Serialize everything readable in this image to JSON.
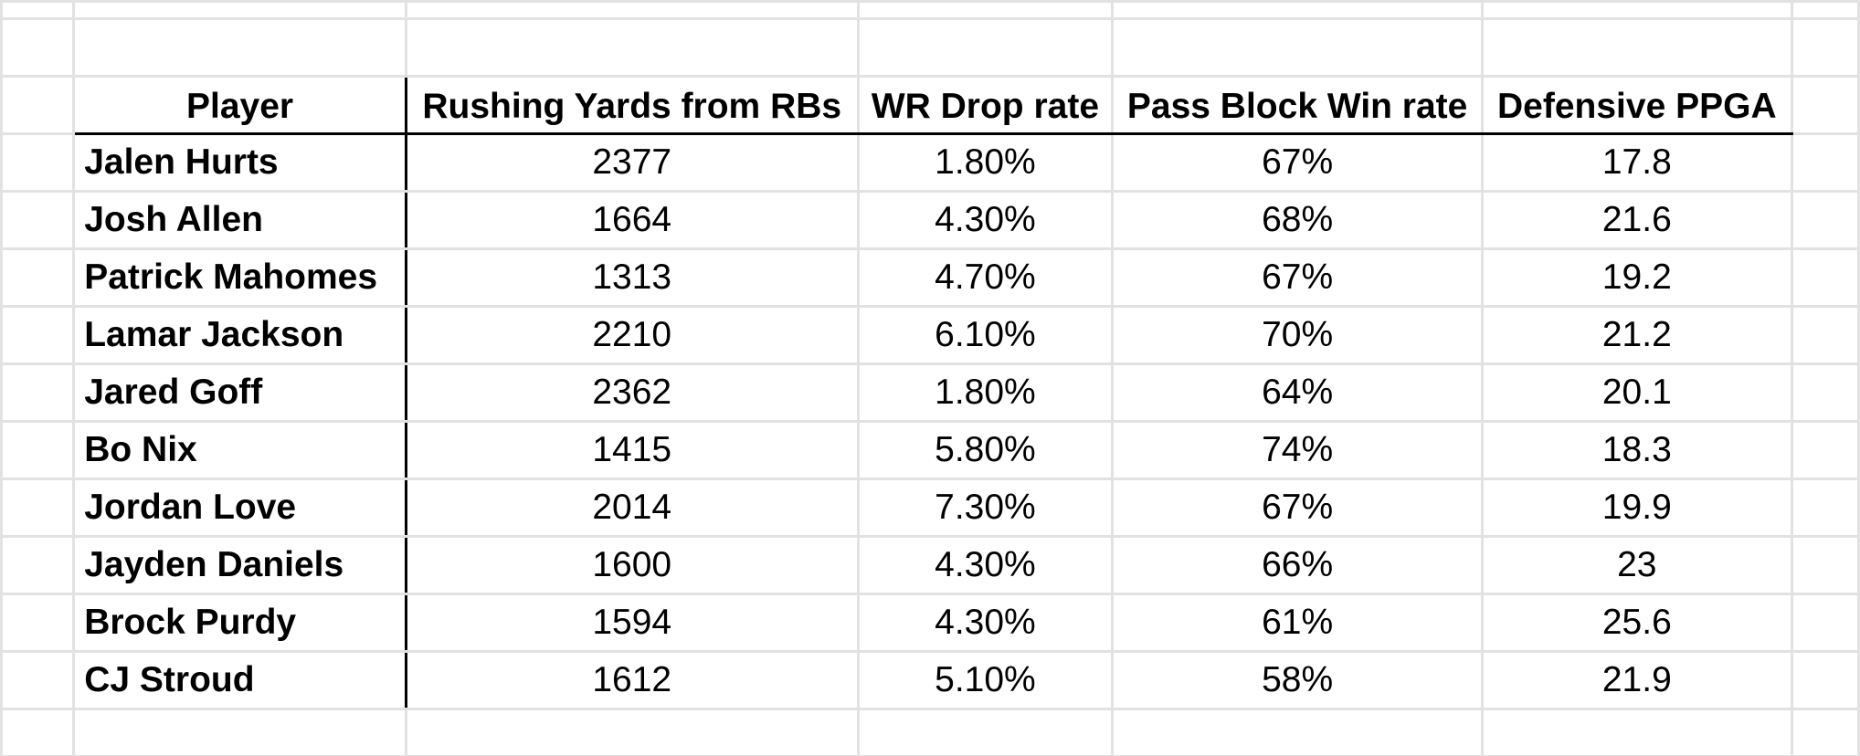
{
  "table": {
    "headers": {
      "player": "Player",
      "rushing": "Rushing Yards from RBs",
      "drop_rate": "WR Drop rate",
      "pass_block": "Pass Block Win rate",
      "ppga": "Defensive PPGA"
    },
    "rows": [
      {
        "player": "Jalen Hurts",
        "rushing": "2377",
        "drop_rate": "1.80%",
        "pass_block": "67%",
        "ppga": "17.8"
      },
      {
        "player": "Josh Allen",
        "rushing": "1664",
        "drop_rate": "4.30%",
        "pass_block": "68%",
        "ppga": "21.6"
      },
      {
        "player": "Patrick Mahomes",
        "rushing": "1313",
        "drop_rate": "4.70%",
        "pass_block": "67%",
        "ppga": "19.2"
      },
      {
        "player": "Lamar Jackson",
        "rushing": "2210",
        "drop_rate": "6.10%",
        "pass_block": "70%",
        "ppga": "21.2"
      },
      {
        "player": "Jared Goff",
        "rushing": "2362",
        "drop_rate": "1.80%",
        "pass_block": "64%",
        "ppga": "20.1"
      },
      {
        "player": "Bo Nix",
        "rushing": "1415",
        "drop_rate": "5.80%",
        "pass_block": "74%",
        "ppga": "18.3"
      },
      {
        "player": "Jordan Love",
        "rushing": "2014",
        "drop_rate": "7.30%",
        "pass_block": "67%",
        "ppga": "19.9"
      },
      {
        "player": "Jayden Daniels",
        "rushing": "1600",
        "drop_rate": "4.30%",
        "pass_block": "66%",
        "ppga": "23"
      },
      {
        "player": "Brock Purdy",
        "rushing": "1594",
        "drop_rate": "4.30%",
        "pass_block": "61%",
        "ppga": "25.6"
      },
      {
        "player": "CJ Stroud",
        "rushing": "1612",
        "drop_rate": "5.10%",
        "pass_block": "58%",
        "ppga": "21.9"
      }
    ]
  },
  "colors": {
    "gridline": "#e2e2e2",
    "border": "#000000",
    "background": "#ffffff"
  }
}
